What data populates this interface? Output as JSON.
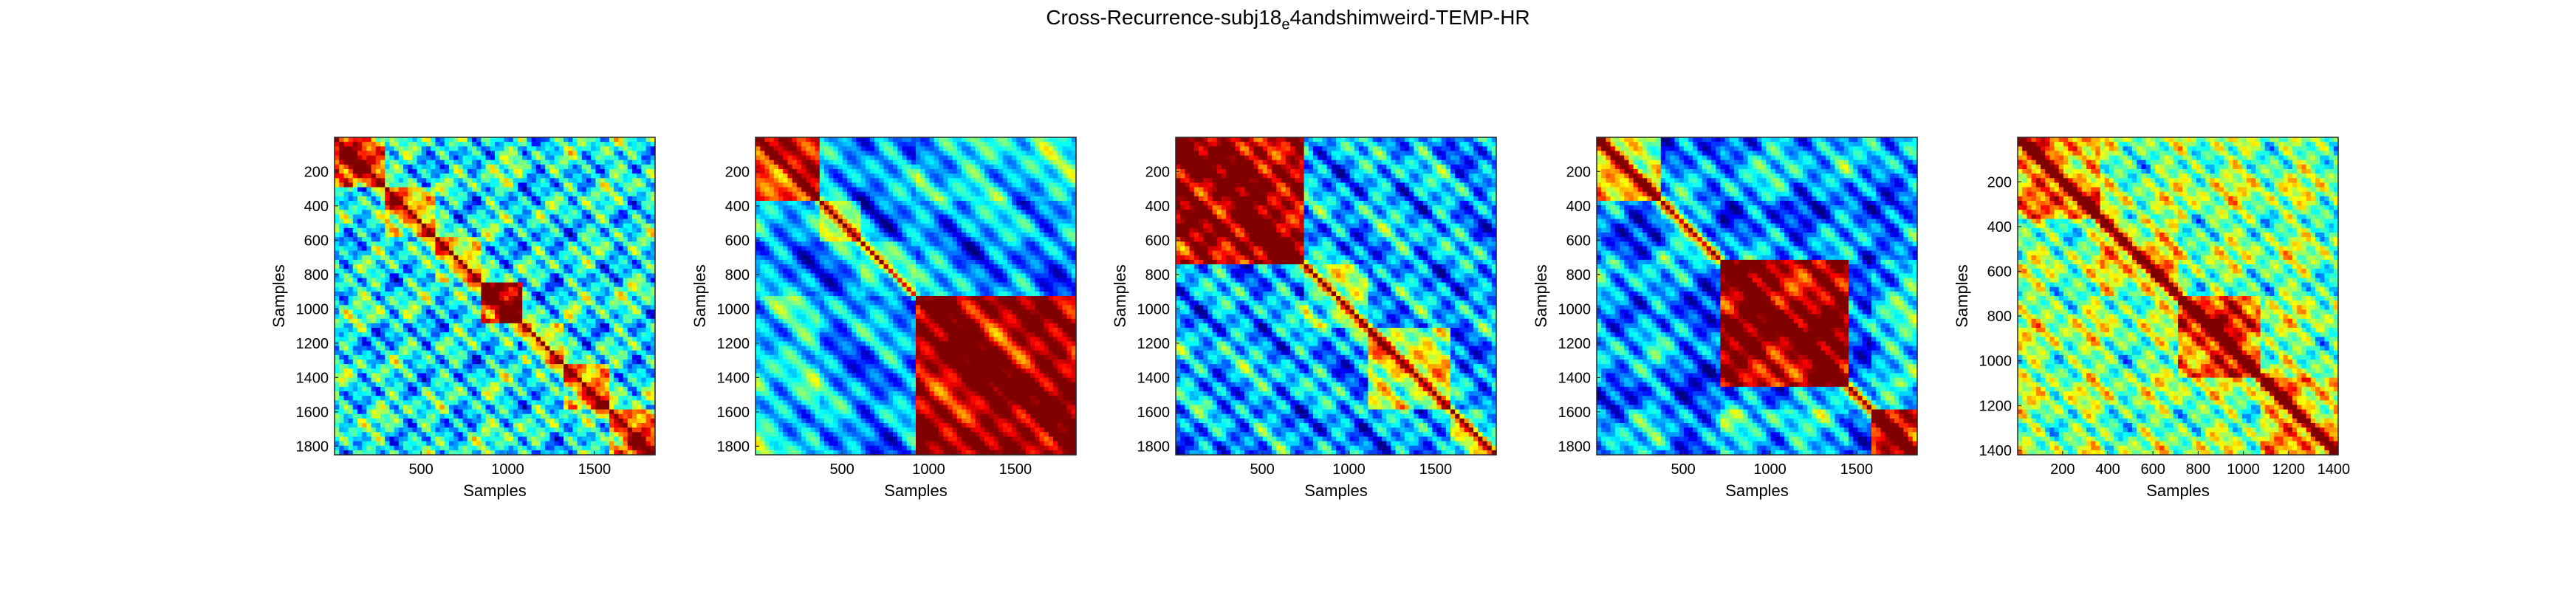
{
  "figure": {
    "title_main": "Cross-Recurrence-subj18",
    "title_sub": "e",
    "title_tail": "4andshimweird-TEMP-HR"
  },
  "chart_data": [
    {
      "type": "heatmap",
      "xlabel": "Samples",
      "ylabel": "Samples",
      "xlim": [
        1,
        1850
      ],
      "ylim": [
        1,
        1850
      ],
      "y_reversed": true,
      "xticks": [
        500,
        1000,
        1500
      ],
      "yticks": [
        200,
        400,
        600,
        800,
        1000,
        1200,
        1400,
        1600,
        1800
      ],
      "colormap": "jet",
      "pattern": {
        "blocks": [
          [
            0.0,
            0.15,
            0.75
          ],
          [
            0.15,
            0.32,
            0.6
          ],
          [
            0.32,
            0.45,
            0.55
          ],
          [
            0.45,
            0.58,
            0.9
          ],
          [
            0.58,
            0.72,
            0.5
          ],
          [
            0.72,
            0.86,
            0.65
          ],
          [
            0.86,
            1.0,
            0.7
          ]
        ],
        "offdiag": 0.35,
        "osc": 10,
        "oscAmp": 0.35,
        "seed": 3
      }
    },
    {
      "type": "heatmap",
      "xlabel": "Samples",
      "ylabel": "Samples",
      "xlim": [
        1,
        1850
      ],
      "ylim": [
        1,
        1850
      ],
      "y_reversed": true,
      "xticks": [
        500,
        1000,
        1500
      ],
      "yticks": [
        200,
        400,
        600,
        800,
        1000,
        1200,
        1400,
        1600,
        1800
      ],
      "colormap": "jet",
      "pattern": {
        "blocks": [
          [
            0.0,
            0.2,
            0.8
          ],
          [
            0.2,
            0.33,
            0.45
          ],
          [
            0.33,
            0.5,
            0.35
          ],
          [
            0.5,
            1.0,
            0.95
          ]
        ],
        "offdiag": 0.3,
        "osc": 6,
        "oscAmp": 0.2,
        "seed": 7
      }
    },
    {
      "type": "heatmap",
      "xlabel": "Samples",
      "ylabel": "Samples",
      "xlim": [
        1,
        1850
      ],
      "ylim": [
        1,
        1850
      ],
      "y_reversed": true,
      "xticks": [
        500,
        1000,
        1500
      ],
      "yticks": [
        200,
        400,
        600,
        800,
        1000,
        1200,
        1400,
        1600,
        1800
      ],
      "colormap": "jet",
      "pattern": {
        "blocks": [
          [
            0.0,
            0.4,
            0.95
          ],
          [
            0.4,
            0.6,
            0.45
          ],
          [
            0.6,
            0.85,
            0.55
          ],
          [
            0.85,
            1.0,
            0.4
          ]
        ],
        "offdiag": 0.3,
        "osc": 8,
        "oscAmp": 0.3,
        "seed": 11
      }
    },
    {
      "type": "heatmap",
      "xlabel": "Samples",
      "ylabel": "Samples",
      "xlim": [
        1,
        1850
      ],
      "ylim": [
        1,
        1850
      ],
      "y_reversed": true,
      "xticks": [
        500,
        1000,
        1500
      ],
      "yticks": [
        200,
        400,
        600,
        800,
        1000,
        1200,
        1400,
        1600,
        1800
      ],
      "colormap": "jet",
      "pattern": {
        "blocks": [
          [
            0.0,
            0.2,
            0.6
          ],
          [
            0.2,
            0.38,
            0.3
          ],
          [
            0.38,
            0.78,
            0.95
          ],
          [
            0.78,
            0.85,
            0.35
          ],
          [
            0.85,
            1.0,
            0.85
          ]
        ],
        "offdiag": 0.28,
        "osc": 7,
        "oscAmp": 0.25,
        "seed": 19
      }
    },
    {
      "type": "heatmap",
      "xlabel": "Samples",
      "ylabel": "Samples",
      "xlim": [
        1,
        1420
      ],
      "ylim": [
        1,
        1420
      ],
      "y_reversed": true,
      "xticks": [
        200,
        400,
        600,
        800,
        1000,
        1200,
        1400
      ],
      "yticks": [
        200,
        400,
        600,
        800,
        1000,
        1200,
        1400
      ],
      "colormap": "jet",
      "pattern": {
        "blocks": [
          [
            0.0,
            0.25,
            0.7
          ],
          [
            0.25,
            0.5,
            0.6
          ],
          [
            0.5,
            0.75,
            0.8
          ],
          [
            0.75,
            1.0,
            0.65
          ]
        ],
        "offdiag": 0.45,
        "osc": 9,
        "oscAmp": 0.3,
        "seed": 23
      }
    }
  ]
}
